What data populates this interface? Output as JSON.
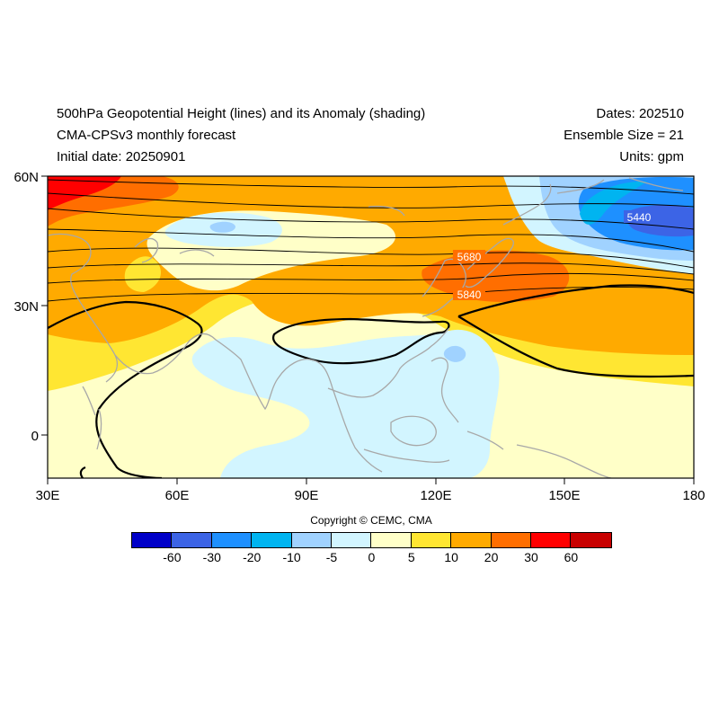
{
  "header": {
    "title": "500hPa Geopotential Height (lines) and its Anomaly (shading)",
    "subtitle": "CMA-CPSv3 monthly forecast",
    "initial": "Initial date: 20250901",
    "dates": "Dates: 202510",
    "ensemble": "Ensemble Size = 21",
    "units": "Units: gpm"
  },
  "axes": {
    "lat_labels": [
      "60N",
      "30N",
      "0"
    ],
    "lon_labels": [
      "30E",
      "60E",
      "90E",
      "120E",
      "150E",
      "180"
    ]
  },
  "contour_labels": [
    "5440",
    "5680",
    "5840"
  ],
  "copyright": "Copyright © CEMC, CMA",
  "colorbar": {
    "colors": [
      "#0000c8",
      "#3c64e6",
      "#1e90ff",
      "#00b4f0",
      "#a0d2ff",
      "#d2f5ff",
      "#ffffc8",
      "#ffe632",
      "#ffaa00",
      "#ff6e00",
      "#ff0000",
      "#c80000"
    ],
    "labels": [
      "-60",
      "-30",
      "-20",
      "-10",
      "-5",
      "0",
      "5",
      "10",
      "20",
      "30",
      "60"
    ]
  }
}
